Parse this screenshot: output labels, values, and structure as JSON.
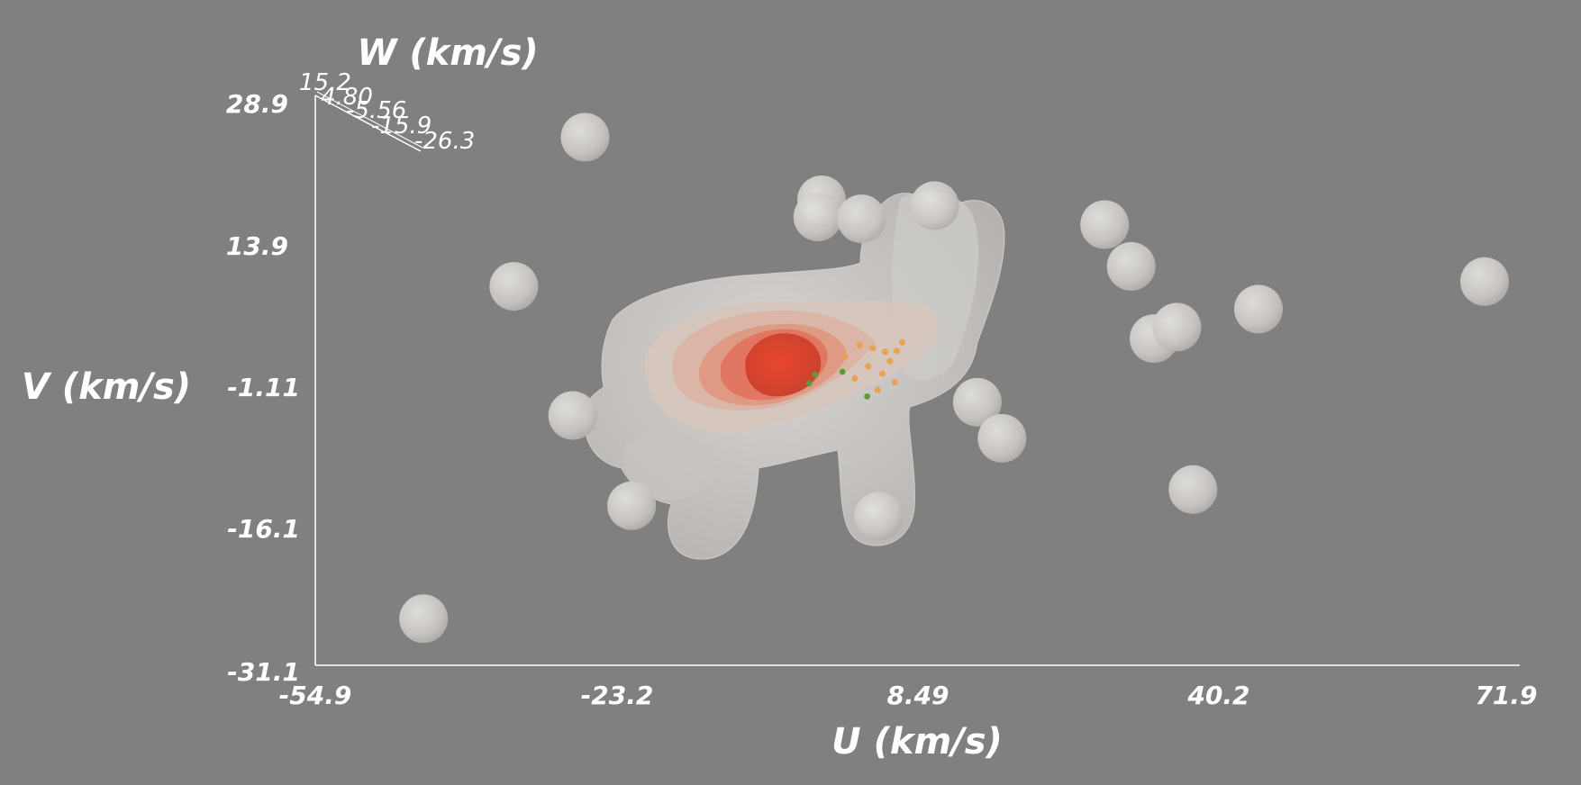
{
  "chart_data": {
    "type": "scatter",
    "title": "",
    "xlabel": "U (km/s)",
    "ylabel": "V (km/s)",
    "zlabel": "W (km/s)",
    "xlim": [
      -54.9,
      71.9
    ],
    "ylim": [
      -31.1,
      28.9
    ],
    "zlim": [
      -26.3,
      15.2
    ],
    "x_ticks": [
      "-54.9",
      "-23.2",
      "8.49",
      "40.2",
      "71.9"
    ],
    "y_ticks": [
      "-31.1",
      "-16.1",
      "-1.11",
      "13.9",
      "28.9"
    ],
    "z_ticks": [
      "15.2",
      "4.80",
      "-5.56",
      "-15.9",
      "-26.3"
    ],
    "grid": false,
    "rendering": "3D iso-density contour surfaces of stellar velocity distribution, translucent white outer shells to red core, green/orange member points",
    "colors": {
      "background": "#808080",
      "outer_shell": "#d9d6d2",
      "core": "#e0452d",
      "members_orange": "#e8a257",
      "members_green": "#5f9a3a"
    },
    "isolated_blobs": [
      {
        "u": -26.5,
        "v": 24.5
      },
      {
        "u": -43.5,
        "v": -26.2
      },
      {
        "u": -34.0,
        "v": 8.8
      },
      {
        "u": -27.8,
        "v": -4.8
      },
      {
        "u": -21.6,
        "v": -14.3
      },
      {
        "u": -1.6,
        "v": 17.9
      },
      {
        "u": -2.0,
        "v": 16.1
      },
      {
        "u": 2.6,
        "v": 15.9
      },
      {
        "u": 4.4,
        "v": -15.4
      },
      {
        "u": 10.3,
        "v": 17.3
      },
      {
        "u": 14.8,
        "v": -3.4
      },
      {
        "u": 17.4,
        "v": -7.2
      },
      {
        "u": 28.2,
        "v": 15.3
      },
      {
        "u": 31.0,
        "v": 10.9
      },
      {
        "u": 33.4,
        "v": 3.3
      },
      {
        "u": 35.8,
        "v": 4.5
      },
      {
        "u": 44.4,
        "v": 6.4
      },
      {
        "u": 37.5,
        "v": -12.6
      },
      {
        "u": 68.2,
        "v": 9.3
      }
    ],
    "members": [
      {
        "u": 0.9,
        "v": 1.4
      },
      {
        "u": 2.4,
        "v": 2.6
      },
      {
        "u": 3.8,
        "v": 2.3
      },
      {
        "u": 5.1,
        "v": 1.9
      },
      {
        "u": 6.3,
        "v": 2.0
      },
      {
        "u": 6.9,
        "v": 2.9
      },
      {
        "u": 3.3,
        "v": 0.4
      },
      {
        "u": 4.8,
        "v": -0.4
      },
      {
        "u": 6.1,
        "v": -1.3
      },
      {
        "u": 1.9,
        "v": -0.9
      },
      {
        "u": 4.3,
        "v": -2.1
      },
      {
        "u": 5.6,
        "v": 0.9
      }
    ],
    "members_green": [
      {
        "u": -2.3,
        "v": -0.5
      },
      {
        "u": -2.9,
        "v": -1.4
      },
      {
        "u": 0.6,
        "v": -0.2
      },
      {
        "u": 3.2,
        "v": -2.8
      }
    ]
  }
}
